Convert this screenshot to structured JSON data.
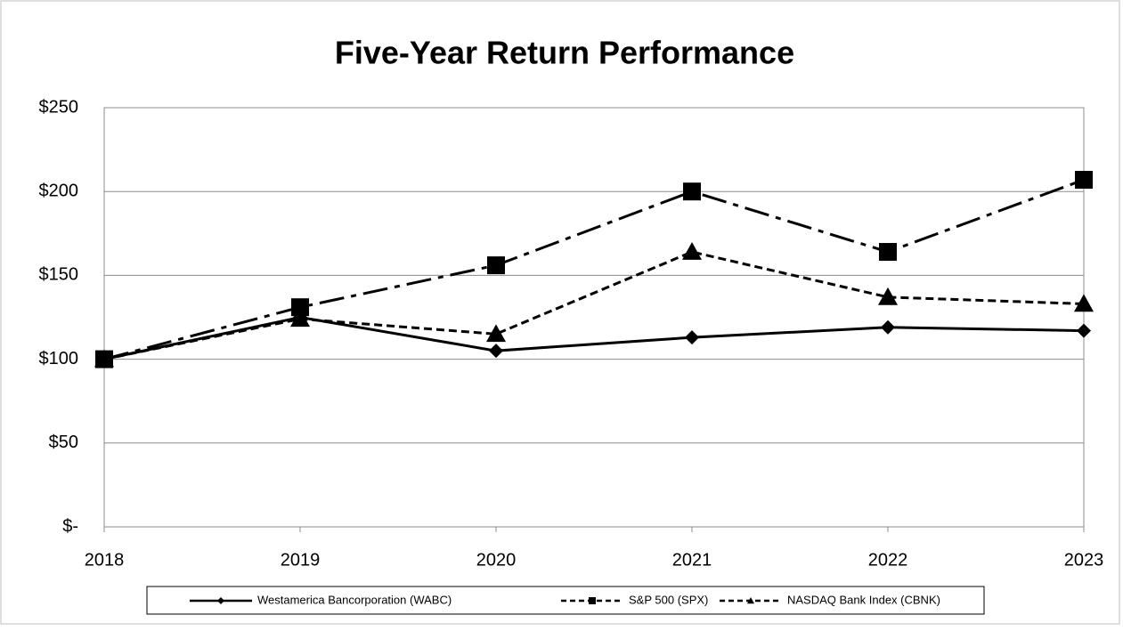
{
  "chart_data": {
    "type": "line",
    "title": "Five-Year Return Performance",
    "categories": [
      "2018",
      "2019",
      "2020",
      "2021",
      "2022",
      "2023"
    ],
    "series": [
      {
        "name": "Westamerica Bancorporation (WABC)",
        "color": "#000000",
        "marker": "diamond",
        "dash": "solid",
        "values": [
          100,
          125,
          105,
          113,
          119,
          117
        ]
      },
      {
        "name": "S&P 500 (SPX)",
        "color": "#000000",
        "marker": "square",
        "dash": "dashdot",
        "values": [
          100,
          131,
          156,
          200,
          164,
          207
        ]
      },
      {
        "name": "NASDAQ Bank Index (CBNK)",
        "color": "#000000",
        "marker": "triangle",
        "dash": "dash",
        "values": [
          100,
          124,
          115,
          164,
          137,
          133
        ]
      }
    ],
    "ylim": [
      0,
      250
    ],
    "yticks": [
      {
        "value": 0,
        "label": "$-"
      },
      {
        "value": 50,
        "label": "$50"
      },
      {
        "value": 100,
        "label": "$100"
      },
      {
        "value": 150,
        "label": "$150"
      },
      {
        "value": 200,
        "label": "$200"
      },
      {
        "value": 250,
        "label": "$250"
      }
    ],
    "grid": true,
    "legend": "bottom"
  }
}
